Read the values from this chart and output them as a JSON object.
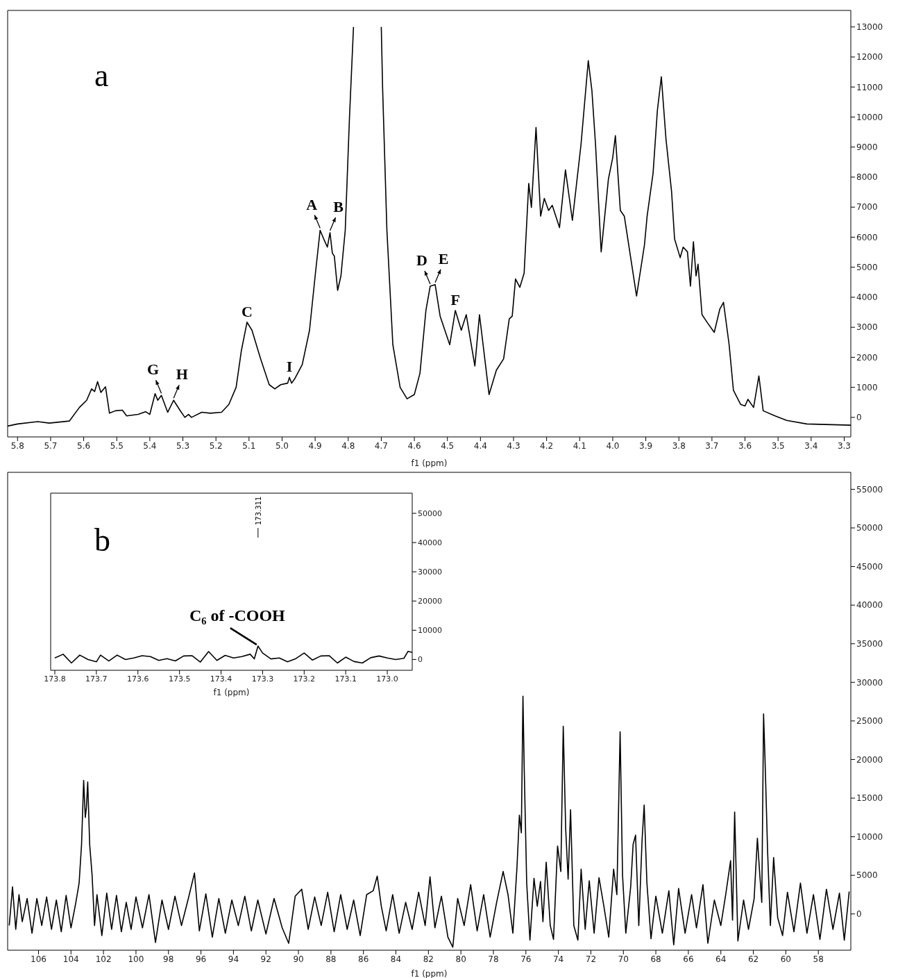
{
  "chart_data": [
    {
      "type": "line",
      "title": "a",
      "xlabel": "f1 (ppm)",
      "color": "#000000",
      "x": [
        5.83,
        5.8,
        5.739,
        5.704,
        5.643,
        5.613,
        5.591,
        5.576,
        5.567,
        5.558,
        5.548,
        5.534,
        5.522,
        5.504,
        5.483,
        5.47,
        5.435,
        5.413,
        5.4,
        5.384,
        5.376,
        5.365,
        5.346,
        5.328,
        5.309,
        5.294,
        5.283,
        5.274,
        5.243,
        5.217,
        5.183,
        5.161,
        5.139,
        5.123,
        5.106,
        5.091,
        5.065,
        5.039,
        5.022,
        5.004,
        4.983,
        4.978,
        4.971,
        4.961,
        4.939,
        4.917,
        4.9,
        4.885,
        4.874,
        4.863,
        4.855,
        4.848,
        4.842,
        4.832,
        4.822,
        4.809,
        4.796,
        4.784,
        4.78,
        4.704,
        4.7,
        4.696,
        4.683,
        4.665,
        4.643,
        4.622,
        4.6,
        4.583,
        4.565,
        4.552,
        4.537,
        4.522,
        4.493,
        4.476,
        4.458,
        4.443,
        4.417,
        4.403,
        4.374,
        4.352,
        4.33,
        4.313,
        4.304,
        4.294,
        4.281,
        4.268,
        4.254,
        4.246,
        4.232,
        4.218,
        4.207,
        4.194,
        4.183,
        4.161,
        4.143,
        4.122,
        4.096,
        4.074,
        4.063,
        4.052,
        4.035,
        4.013,
        4.0,
        3.992,
        3.977,
        3.965,
        3.928,
        3.904,
        3.896,
        3.878,
        3.865,
        3.853,
        3.839,
        3.822,
        3.813,
        3.796,
        3.787,
        3.774,
        3.765,
        3.756,
        3.748,
        3.742,
        3.73,
        3.713,
        3.693,
        3.676,
        3.665,
        3.648,
        3.635,
        3.613,
        3.6,
        3.591,
        3.574,
        3.558,
        3.545,
        3.509,
        3.474,
        3.413,
        3.28
      ],
      "values": [
        -290,
        -220,
        -140,
        -190,
        -120,
        330,
        570,
        950,
        860,
        1190,
        830,
        1020,
        140,
        220,
        240,
        50,
        100,
        190,
        100,
        790,
        570,
        730,
        170,
        570,
        240,
        0,
        100,
        0,
        170,
        140,
        170,
        430,
        1000,
        2230,
        3170,
        2900,
        1950,
        1090,
        950,
        1090,
        1140,
        1330,
        1140,
        1300,
        1760,
        2900,
        4710,
        6230,
        5940,
        5670,
        6150,
        5470,
        5370,
        4230,
        4710,
        6230,
        10030,
        13000,
        null,
        null,
        13000,
        10980,
        6230,
        2420,
        1000,
        620,
        760,
        1470,
        3560,
        4370,
        4420,
        3370,
        2420,
        3560,
        2900,
        3420,
        1710,
        3420,
        760,
        1570,
        1950,
        3280,
        3370,
        4610,
        4330,
        4800,
        7790,
        6990,
        9650,
        6700,
        7290,
        6890,
        7060,
        6320,
        8240,
        6560,
        9080,
        11880,
        10880,
        9080,
        5510,
        7940,
        8650,
        9380,
        6890,
        6700,
        4040,
        5750,
        6700,
        8130,
        10220,
        11340,
        9270,
        7510,
        5940,
        5320,
        5670,
        5510,
        4370,
        5850,
        4710,
        5100,
        3420,
        3140,
        2830,
        3610,
        3830,
        2420,
        900,
        430,
        380,
        600,
        330,
        1380,
        220,
        50,
        -100,
        -220,
        -260
      ],
      "xlim": [
        5.83,
        3.28
      ],
      "xticks": [
        5.8,
        5.7,
        5.6,
        5.5,
        5.4,
        5.3,
        5.2,
        5.1,
        {
          "value": 5.0,
          "label": "5.0"
        },
        4.9,
        4.8,
        4.7,
        4.6,
        4.5,
        4.4,
        4.3,
        4.2,
        4.1,
        {
          "value": 4.0,
          "label": "4.0"
        },
        3.9,
        3.8,
        3.7,
        3.6,
        3.5,
        3.4,
        3.3
      ],
      "ylim": [
        -650,
        13550
      ],
      "yticks": [
        0,
        1000,
        2000,
        3000,
        4000,
        5000,
        6000,
        7000,
        8000,
        9000,
        10000,
        11000,
        12000,
        13000
      ],
      "annotations": [
        {
          "text": "A",
          "x": 4.885,
          "y": 6230
        },
        {
          "text": "B",
          "x": 4.855,
          "y": 6150
        },
        {
          "text": "C",
          "x": 5.106,
          "y": 3170
        },
        {
          "text": "D",
          "x": 4.552,
          "y": 4370
        },
        {
          "text": "E",
          "x": 4.537,
          "y": 4420
        },
        {
          "text": "F",
          "x": 4.476,
          "y": 3560
        },
        {
          "text": "G",
          "x": 5.365,
          "y": 730
        },
        {
          "text": "H",
          "x": 5.328,
          "y": 570
        },
        {
          "text": "I",
          "x": 4.978,
          "y": 1330
        }
      ]
    },
    {
      "type": "line",
      "title": "b",
      "xlabel": "f1 (ppm)",
      "color": "#000000",
      "x": [
        107.8,
        107.6,
        107.4,
        107.2,
        107.0,
        106.7,
        106.4,
        106.1,
        105.8,
        105.5,
        105.2,
        104.9,
        104.6,
        104.3,
        104.0,
        103.7,
        103.5,
        103.35,
        103.22,
        103.12,
        103.05,
        102.97,
        102.85,
        102.7,
        102.55,
        102.4,
        102.1,
        101.8,
        101.5,
        101.2,
        100.9,
        100.6,
        100.3,
        100.0,
        99.6,
        99.2,
        98.8,
        98.4,
        98.0,
        97.6,
        97.2,
        96.8,
        96.4,
        96.1,
        95.7,
        95.3,
        94.9,
        94.5,
        94.1,
        93.7,
        93.3,
        92.9,
        92.5,
        92.0,
        91.5,
        91.0,
        90.6,
        90.2,
        89.8,
        89.4,
        89.0,
        88.6,
        88.2,
        87.8,
        87.4,
        87.0,
        86.6,
        86.2,
        85.8,
        85.4,
        85.15,
        84.9,
        84.6,
        84.2,
        83.8,
        83.4,
        83.0,
        82.6,
        82.2,
        81.9,
        81.6,
        81.2,
        80.8,
        80.5,
        80.2,
        79.8,
        79.4,
        79.0,
        78.6,
        78.2,
        77.8,
        77.4,
        77.1,
        76.8,
        76.55,
        76.4,
        76.28,
        76.18,
        76.1,
        75.95,
        75.75,
        75.5,
        75.3,
        75.1,
        74.95,
        74.75,
        74.5,
        74.3,
        74.05,
        73.85,
        73.7,
        73.55,
        73.4,
        73.25,
        73.05,
        72.8,
        72.6,
        72.35,
        72.1,
        71.8,
        71.5,
        71.2,
        70.9,
        70.6,
        70.4,
        70.2,
        70.05,
        69.85,
        69.55,
        69.4,
        69.25,
        69.05,
        68.85,
        68.72,
        68.55,
        68.3,
        68.0,
        67.6,
        67.2,
        66.9,
        66.6,
        66.2,
        65.8,
        65.5,
        65.1,
        64.8,
        64.4,
        64.0,
        63.7,
        63.4,
        63.28,
        63.15,
        62.95,
        62.6,
        62.3,
        61.95,
        61.75,
        61.6,
        61.48,
        61.37,
        61.28,
        61.12,
        60.95,
        60.75,
        60.5,
        60.2,
        59.9,
        59.5,
        59.1,
        58.7,
        58.3,
        57.9,
        57.5,
        57.1,
        56.7,
        56.4,
        56.1
      ],
      "values": [
        -1500,
        3500,
        -2000,
        2500,
        -1000,
        2000,
        -2500,
        2000,
        -1500,
        2200,
        -2000,
        1800,
        -2300,
        2400,
        -1800,
        1500,
        4000,
        9000,
        17300,
        12500,
        13800,
        17100,
        9000,
        5000,
        -1500,
        2500,
        -2800,
        2700,
        -2000,
        2400,
        -2300,
        1500,
        -2000,
        2200,
        -1800,
        2500,
        -3700,
        1800,
        -2000,
        2300,
        -1500,
        1800,
        5300,
        -2200,
        2600,
        -3000,
        2000,
        -2500,
        1800,
        -1500,
        2300,
        -2200,
        1800,
        -2600,
        2000,
        -1800,
        -3800,
        2300,
        3200,
        -2000,
        2200,
        -1500,
        2800,
        -2300,
        2500,
        -2000,
        1800,
        -2800,
        2500,
        3000,
        4900,
        1000,
        -2200,
        2500,
        -2500,
        1500,
        -2000,
        2800,
        -1500,
        4800,
        -1800,
        2300,
        -3000,
        -4300,
        2000,
        -1500,
        3800,
        -2200,
        2500,
        -3000,
        1500,
        5500,
        2500,
        -2500,
        6000,
        12800,
        10500,
        28200,
        18500,
        4000,
        -3400,
        4600,
        1000,
        4200,
        -1000,
        6700,
        -1500,
        -3300,
        8800,
        5500,
        24300,
        11000,
        4500,
        13500,
        -1500,
        -3400,
        5800,
        -2000,
        4300,
        -2500,
        4700,
        1000,
        -3000,
        5800,
        2500,
        23600,
        5000,
        -2500,
        3500,
        9000,
        10200,
        -1500,
        9500,
        14100,
        4000,
        -3200,
        2300,
        -2500,
        3000,
        -4000,
        3300,
        -2500,
        2500,
        -1800,
        3800,
        -3800,
        1800,
        -1500,
        2500,
        6900,
        -800,
        13200,
        -3500,
        1800,
        -2000,
        2000,
        9800,
        5000,
        1500,
        25900,
        20000,
        8000,
        -1500,
        7300,
        -500,
        -2800,
        2800,
        -2300,
        4000,
        -2500,
        2500,
        -3300,
        3200,
        -2000,
        2700,
        -3400,
        2900
      ],
      "xlim": [
        107.9,
        56.0
      ],
      "xticks": [
        106,
        104,
        102,
        100,
        98,
        96,
        94,
        92,
        90,
        88,
        86,
        84,
        82,
        80,
        78,
        76,
        74,
        72,
        70,
        68,
        66,
        64,
        62,
        60,
        58
      ],
      "ylim": [
        -4700,
        57200
      ],
      "yticks": [
        0,
        5000,
        10000,
        15000,
        20000,
        25000,
        30000,
        35000,
        40000,
        45000,
        50000,
        55000
      ]
    },
    {
      "type": "line",
      "xlabel": "f1 (ppm)",
      "color": "#000000",
      "x": [
        173.8,
        173.78,
        173.76,
        173.74,
        173.72,
        173.7,
        173.69,
        173.67,
        173.65,
        173.63,
        173.61,
        173.59,
        173.57,
        173.55,
        173.53,
        173.51,
        173.49,
        173.47,
        173.45,
        173.43,
        173.41,
        173.39,
        173.37,
        173.35,
        173.33,
        173.32,
        173.311,
        173.3,
        173.28,
        173.26,
        173.24,
        173.22,
        173.2,
        173.18,
        173.16,
        173.14,
        173.12,
        173.1,
        173.08,
        173.06,
        173.04,
        173.02,
        173.0,
        172.98,
        172.96,
        172.95,
        172.94
      ],
      "values": [
        500,
        1800,
        -1200,
        1500,
        0,
        -800,
        1500,
        -500,
        1500,
        0,
        500,
        1300,
        1000,
        -300,
        300,
        -500,
        1200,
        1300,
        -900,
        2700,
        -300,
        1400,
        500,
        1000,
        1800,
        200,
        4600,
        2200,
        200,
        500,
        -800,
        300,
        2200,
        -200,
        1200,
        1300,
        -1200,
        800,
        -700,
        -1200,
        600,
        1200,
        500,
        0,
        400,
        2800,
        2400
      ],
      "xlim": [
        173.81,
        172.94
      ],
      "xticks": [
        173.8,
        173.7,
        173.6,
        173.5,
        173.4,
        173.3,
        173.2,
        173.1,
        {
          "value": 173.0,
          "label": "173.0"
        }
      ],
      "ylim": [
        -3700,
        56900
      ],
      "yticks": [
        0,
        10000,
        20000,
        30000,
        40000,
        50000
      ],
      "annotations": [
        {
          "text": "173.311",
          "x": 173.311
        },
        {
          "text": "C₆ of -COOH",
          "x": 173.311,
          "y": 4600
        }
      ]
    }
  ]
}
